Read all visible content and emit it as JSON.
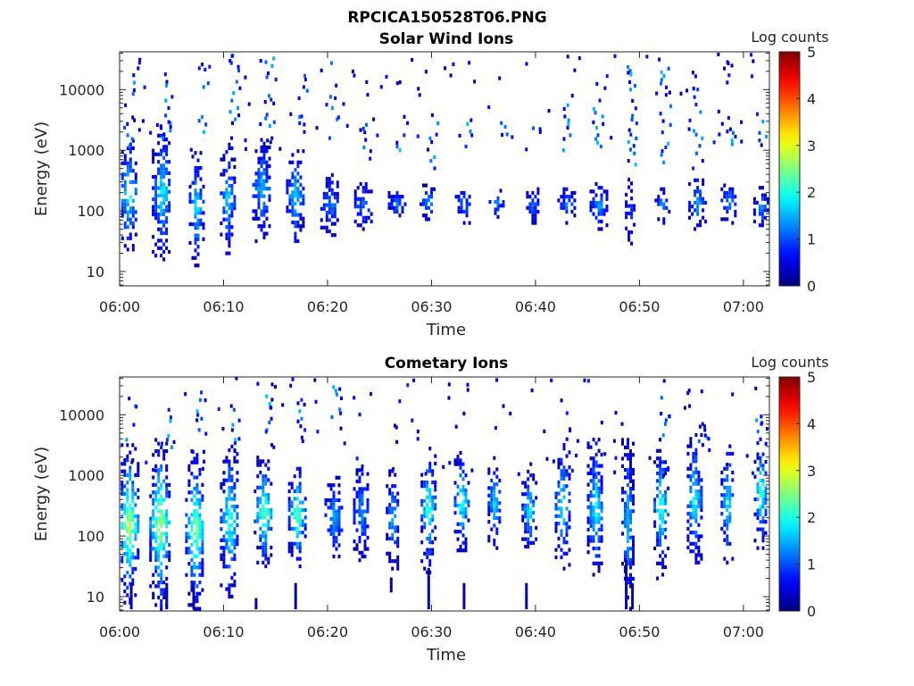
{
  "figure": {
    "suptitle": "RPCICA150528T06.PNG"
  },
  "chart_data": [
    {
      "type": "heatmap",
      "title": "Solar Wind Ions",
      "xlabel": "Time",
      "ylabel": "Energy (eV)",
      "x_ticks": [
        "06:00",
        "06:10",
        "06:20",
        "06:30",
        "06:40",
        "06:50",
        "07:00"
      ],
      "x_tick_minutes": [
        0,
        10,
        20,
        30,
        40,
        50,
        60
      ],
      "xlim_minutes": [
        0,
        62.5
      ],
      "y_scale": "log",
      "y_ticks": [
        "10",
        "100",
        "1000",
        "10000"
      ],
      "y_tick_values": [
        10,
        100,
        1000,
        10000
      ],
      "ylim": [
        5.8,
        42000
      ],
      "colorbar": {
        "label": "Log counts",
        "ticks": [
          "0",
          "1",
          "2",
          "3",
          "4",
          "5"
        ],
        "range": [
          0,
          5
        ],
        "colormap": "jet"
      },
      "bursts": [
        {
          "t": 0.8,
          "w": 1.8,
          "e_lo": 1.3,
          "e_hi": 3.2,
          "peak": 2.0
        },
        {
          "t": 4.0,
          "w": 1.8,
          "e_lo": 1.2,
          "e_hi": 3.4,
          "peak": 1.9
        },
        {
          "t": 7.3,
          "w": 1.3,
          "e_lo": 1.1,
          "e_hi": 3.0,
          "peak": 1.9
        },
        {
          "t": 10.3,
          "w": 1.3,
          "e_lo": 1.3,
          "e_hi": 3.1,
          "peak": 1.8
        },
        {
          "t": 13.6,
          "w": 1.7,
          "e_lo": 1.5,
          "e_hi": 3.2,
          "peak": 1.7
        },
        {
          "t": 16.8,
          "w": 1.6,
          "e_lo": 1.5,
          "e_hi": 3.0,
          "peak": 1.8
        },
        {
          "t": 20.2,
          "w": 1.8,
          "e_lo": 1.6,
          "e_hi": 2.6,
          "peak": 1.3
        },
        {
          "t": 23.4,
          "w": 1.7,
          "e_lo": 1.7,
          "e_hi": 2.5,
          "peak": 1.2
        },
        {
          "t": 26.6,
          "w": 1.6,
          "e_lo": 1.8,
          "e_hi": 2.4,
          "peak": 1.2
        },
        {
          "t": 29.6,
          "w": 1.5,
          "e_lo": 1.8,
          "e_hi": 2.5,
          "peak": 1.4
        },
        {
          "t": 33.0,
          "w": 1.5,
          "e_lo": 1.8,
          "e_hi": 2.4,
          "peak": 1.3
        },
        {
          "t": 36.2,
          "w": 1.4,
          "e_lo": 1.9,
          "e_hi": 2.4,
          "peak": 1.2
        },
        {
          "t": 39.7,
          "w": 1.2,
          "e_lo": 1.8,
          "e_hi": 2.4,
          "peak": 1.1
        },
        {
          "t": 42.9,
          "w": 1.6,
          "e_lo": 1.8,
          "e_hi": 2.4,
          "peak": 1.2
        },
        {
          "t": 46.0,
          "w": 1.6,
          "e_lo": 1.7,
          "e_hi": 2.5,
          "peak": 1.5
        },
        {
          "t": 49.0,
          "w": 0.8,
          "e_lo": 1.4,
          "e_hi": 2.6,
          "peak": 1.0
        },
        {
          "t": 52.1,
          "w": 1.3,
          "e_lo": 1.8,
          "e_hi": 2.4,
          "peak": 1.4
        },
        {
          "t": 55.5,
          "w": 1.6,
          "e_lo": 1.7,
          "e_hi": 2.6,
          "peak": 1.5
        },
        {
          "t": 58.5,
          "w": 1.4,
          "e_lo": 1.8,
          "e_hi": 2.5,
          "peak": 1.3
        },
        {
          "t": 61.6,
          "w": 1.3,
          "e_lo": 1.7,
          "e_hi": 2.4,
          "peak": 1.4
        }
      ],
      "high_energy_traces": [
        {
          "t": 0.8,
          "e_lo": 3.0,
          "e_hi": 4.3
        },
        {
          "t": 4.5,
          "e_lo": 3.2,
          "e_hi": 4.3
        },
        {
          "t": 8.0,
          "e_lo": 3.3,
          "e_hi": 4.4
        },
        {
          "t": 11.0,
          "e_lo": 3.2,
          "e_hi": 4.6
        },
        {
          "t": 14.3,
          "e_lo": 3.4,
          "e_hi": 4.6
        },
        {
          "t": 17.5,
          "e_lo": 3.3,
          "e_hi": 4.3
        },
        {
          "t": 20.5,
          "e_lo": 3.2,
          "e_hi": 4.6
        },
        {
          "t": 23.8,
          "e_lo": 2.8,
          "e_hi": 3.5
        },
        {
          "t": 26.8,
          "e_lo": 3.0,
          "e_hi": 3.4
        },
        {
          "t": 30.0,
          "e_lo": 2.7,
          "e_hi": 3.5
        },
        {
          "t": 33.4,
          "e_lo": 3.0,
          "e_hi": 3.5
        },
        {
          "t": 36.8,
          "e_lo": 3.2,
          "e_hi": 3.5
        },
        {
          "t": 39.9,
          "e_lo": 3.3,
          "e_hi": 3.5
        },
        {
          "t": 42.8,
          "e_lo": 3.0,
          "e_hi": 3.8
        },
        {
          "t": 45.9,
          "e_lo": 3.0,
          "e_hi": 3.7
        },
        {
          "t": 49.2,
          "e_lo": 2.7,
          "e_hi": 4.4
        },
        {
          "t": 52.4,
          "e_lo": 2.8,
          "e_hi": 4.4
        },
        {
          "t": 55.5,
          "e_lo": 2.7,
          "e_hi": 4.1
        },
        {
          "t": 58.7,
          "e_lo": 3.1,
          "e_hi": 3.8
        },
        {
          "t": 61.7,
          "e_lo": 3.1,
          "e_hi": 3.6
        }
      ]
    },
    {
      "type": "heatmap",
      "title": "Cometary Ions",
      "xlabel": "Time",
      "ylabel": "Energy (eV)",
      "x_ticks": [
        "06:00",
        "06:10",
        "06:20",
        "06:30",
        "06:40",
        "06:50",
        "07:00"
      ],
      "x_tick_minutes": [
        0,
        10,
        20,
        30,
        40,
        50,
        60
      ],
      "xlim_minutes": [
        0,
        62.5
      ],
      "y_scale": "log",
      "y_ticks": [
        "10",
        "100",
        "1000",
        "10000"
      ],
      "y_tick_values": [
        10,
        100,
        1000,
        10000
      ],
      "ylim": [
        5.8,
        42000
      ],
      "colorbar": {
        "label": "Log counts",
        "ticks": [
          "0",
          "1",
          "2",
          "3",
          "4",
          "5"
        ],
        "range": [
          0,
          5
        ],
        "colormap": "jet"
      },
      "bursts": [
        {
          "t": 0.8,
          "w": 1.9,
          "e_lo": 0.9,
          "e_hi": 3.5,
          "peak": 2.9
        },
        {
          "t": 3.8,
          "w": 1.9,
          "e_lo": 0.8,
          "e_hi": 3.6,
          "peak": 2.9
        },
        {
          "t": 7.2,
          "w": 1.8,
          "e_lo": 0.8,
          "e_hi": 3.4,
          "peak": 2.7
        },
        {
          "t": 10.5,
          "w": 1.7,
          "e_lo": 1.0,
          "e_hi": 3.5,
          "peak": 2.2
        },
        {
          "t": 13.8,
          "w": 1.8,
          "e_lo": 1.5,
          "e_hi": 3.3,
          "peak": 2.5
        },
        {
          "t": 17.0,
          "w": 1.6,
          "e_lo": 1.5,
          "e_hi": 3.2,
          "peak": 2.5
        },
        {
          "t": 20.6,
          "w": 1.8,
          "e_lo": 1.6,
          "e_hi": 3.0,
          "peak": 1.5
        },
        {
          "t": 23.2,
          "w": 1.5,
          "e_lo": 1.6,
          "e_hi": 3.2,
          "peak": 1.4
        },
        {
          "t": 26.2,
          "w": 1.2,
          "e_lo": 1.4,
          "e_hi": 3.2,
          "peak": 1.6
        },
        {
          "t": 29.6,
          "w": 1.3,
          "e_lo": 1.4,
          "e_hi": 3.5,
          "peak": 2.3
        },
        {
          "t": 32.8,
          "w": 1.3,
          "e_lo": 1.7,
          "e_hi": 3.4,
          "peak": 2.2
        },
        {
          "t": 36.0,
          "w": 1.2,
          "e_lo": 1.8,
          "e_hi": 3.3,
          "peak": 1.8
        },
        {
          "t": 39.3,
          "w": 1.3,
          "e_lo": 1.7,
          "e_hi": 3.2,
          "peak": 1.9
        },
        {
          "t": 42.5,
          "w": 1.3,
          "e_lo": 1.4,
          "e_hi": 3.6,
          "peak": 2.0
        },
        {
          "t": 45.7,
          "w": 1.5,
          "e_lo": 1.3,
          "e_hi": 3.6,
          "peak": 2.0
        },
        {
          "t": 48.8,
          "w": 1.1,
          "e_lo": 0.8,
          "e_hi": 3.7,
          "peak": 1.7
        },
        {
          "t": 52.0,
          "w": 1.3,
          "e_lo": 1.3,
          "e_hi": 3.6,
          "peak": 2.3
        },
        {
          "t": 55.2,
          "w": 1.3,
          "e_lo": 1.5,
          "e_hi": 3.7,
          "peak": 2.1
        },
        {
          "t": 58.4,
          "w": 1.2,
          "e_lo": 1.5,
          "e_hi": 3.6,
          "peak": 1.9
        },
        {
          "t": 61.6,
          "w": 1.2,
          "e_lo": 1.8,
          "e_hi": 3.6,
          "peak": 2.3
        }
      ],
      "high_energy_traces": [
        {
          "t": 1.0,
          "e_lo": 3.4,
          "e_hi": 4.4
        },
        {
          "t": 4.4,
          "e_lo": 3.4,
          "e_hi": 4.2
        },
        {
          "t": 7.8,
          "e_lo": 3.5,
          "e_hi": 4.4
        },
        {
          "t": 11.0,
          "e_lo": 3.4,
          "e_hi": 4.2
        },
        {
          "t": 14.5,
          "e_lo": 3.5,
          "e_hi": 4.4
        },
        {
          "t": 17.6,
          "e_lo": 3.5,
          "e_hi": 4.3
        },
        {
          "t": 20.8,
          "e_lo": 3.9,
          "e_hi": 4.5
        },
        {
          "t": 52.4,
          "e_lo": 3.6,
          "e_hi": 4.4
        },
        {
          "t": 56.0,
          "e_lo": 3.5,
          "e_hi": 4.2
        },
        {
          "t": 61.2,
          "e_lo": 3.6,
          "e_hi": 4.0
        }
      ],
      "low_energy_streaks": [
        {
          "t": 1.0,
          "e_lo": 0.76,
          "e_hi": 1.2
        },
        {
          "t": 4.4,
          "e_lo": 0.76,
          "e_hi": 1.2
        },
        {
          "t": 7.0,
          "e_lo": 0.76,
          "e_hi": 1.2
        },
        {
          "t": 13.0,
          "e_lo": 0.76,
          "e_hi": 1.0
        },
        {
          "t": 16.8,
          "e_lo": 0.76,
          "e_hi": 1.2
        },
        {
          "t": 26.0,
          "e_lo": 1.1,
          "e_hi": 1.3
        },
        {
          "t": 29.6,
          "e_lo": 0.76,
          "e_hi": 1.5
        },
        {
          "t": 33.0,
          "e_lo": 0.76,
          "e_hi": 1.2
        },
        {
          "t": 39.0,
          "e_lo": 0.76,
          "e_hi": 1.2
        },
        {
          "t": 48.6,
          "e_lo": 0.76,
          "e_hi": 1.6
        },
        {
          "t": 49.2,
          "e_lo": 0.76,
          "e_hi": 1.2
        }
      ]
    }
  ]
}
